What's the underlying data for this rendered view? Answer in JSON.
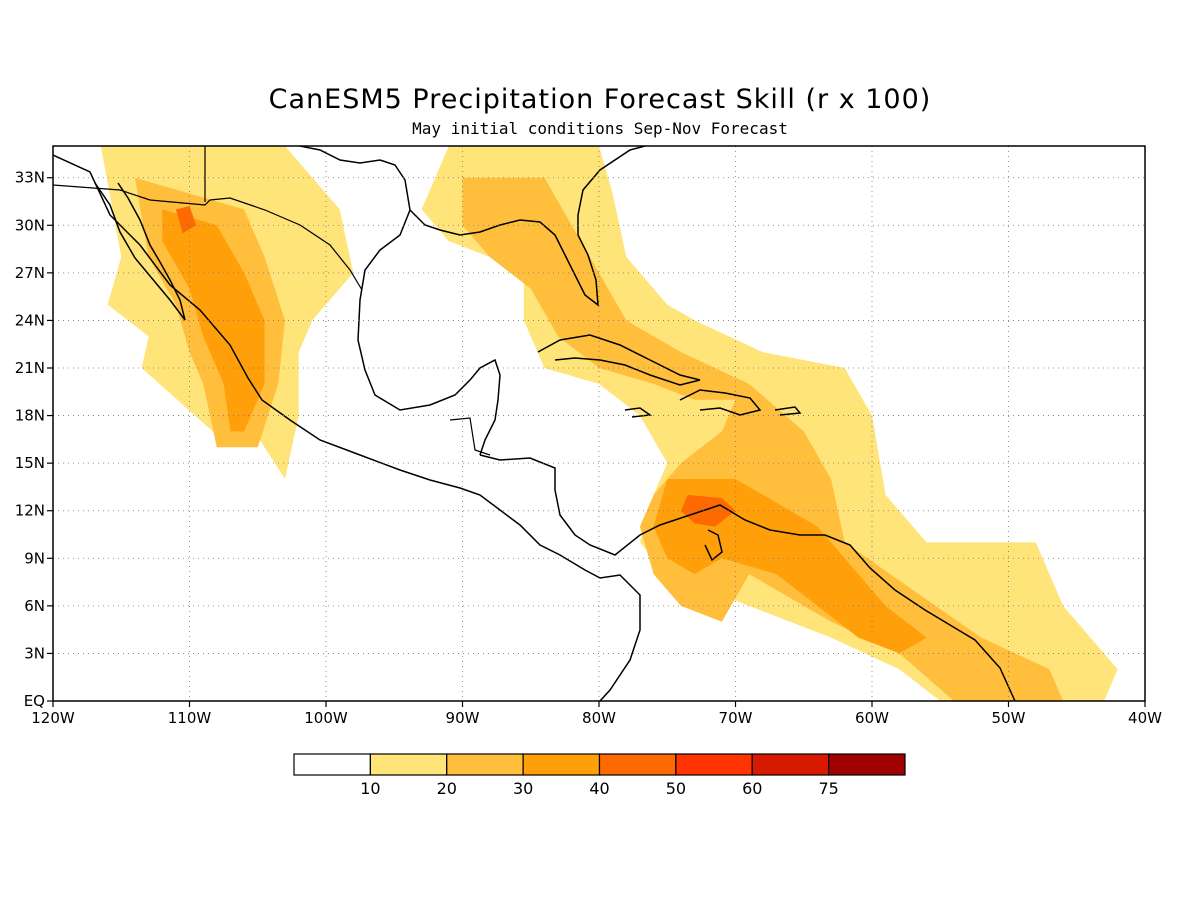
{
  "title": "CanESM5 Precipitation Forecast Skill (r x 100)",
  "subtitle": "May initial conditions  Sep-Nov Forecast",
  "map": {
    "lon_range": [
      -120,
      -40
    ],
    "lat_range": [
      0,
      35
    ],
    "lon_ticks": [
      {
        "value": -120,
        "label": "120W"
      },
      {
        "value": -110,
        "label": "110W"
      },
      {
        "value": -100,
        "label": "100W"
      },
      {
        "value": -90,
        "label": "90W"
      },
      {
        "value": -80,
        "label": "80W"
      },
      {
        "value": -70,
        "label": "70W"
      },
      {
        "value": -60,
        "label": "60W"
      },
      {
        "value": -50,
        "label": "50W"
      },
      {
        "value": -40,
        "label": "40W"
      }
    ],
    "lat_ticks": [
      {
        "value": 0,
        "label": "EQ"
      },
      {
        "value": 3,
        "label": "3N"
      },
      {
        "value": 6,
        "label": "6N"
      },
      {
        "value": 9,
        "label": "9N"
      },
      {
        "value": 12,
        "label": "12N"
      },
      {
        "value": 15,
        "label": "15N"
      },
      {
        "value": 18,
        "label": "18N"
      },
      {
        "value": 21,
        "label": "21N"
      },
      {
        "value": 24,
        "label": "24N"
      },
      {
        "value": 27,
        "label": "27N"
      },
      {
        "value": 30,
        "label": "30N"
      },
      {
        "value": 33,
        "label": "33N"
      }
    ],
    "grid": "dotted"
  },
  "colorbar": {
    "colors": [
      "#ffffff",
      "#ffe47a",
      "#ffbe3c",
      "#ffa00a",
      "#ff6a00",
      "#ff3400",
      "#d81a00",
      "#a00000"
    ],
    "labels": [
      "10",
      "20",
      "30",
      "40",
      "50",
      "60",
      "75"
    ]
  },
  "skill_regions": [
    {
      "level": 1,
      "points": [
        [
          -116.5,
          35
        ],
        [
          -103,
          35
        ],
        [
          -99,
          31
        ],
        [
          -98,
          27
        ],
        [
          -101,
          24
        ],
        [
          -102,
          22
        ],
        [
          -102,
          18
        ],
        [
          -103,
          14
        ],
        [
          -106,
          18
        ],
        [
          -107,
          16
        ],
        [
          -113.5,
          21
        ],
        [
          -113,
          23
        ],
        [
          -116,
          25
        ],
        [
          -115,
          28
        ]
      ]
    },
    {
      "level": 2,
      "points": [
        [
          -114,
          33
        ],
        [
          -106,
          31
        ],
        [
          -104.5,
          28
        ],
        [
          -103,
          24
        ],
        [
          -103.5,
          20
        ],
        [
          -105,
          16
        ],
        [
          -108,
          16
        ],
        [
          -109,
          20
        ],
        [
          -110,
          22
        ],
        [
          -111,
          25
        ],
        [
          -113,
          28
        ]
      ]
    },
    {
      "level": 3,
      "points": [
        [
          -112,
          31
        ],
        [
          -108,
          30
        ],
        [
          -106,
          27
        ],
        [
          -104.5,
          24
        ],
        [
          -104.5,
          20
        ],
        [
          -106,
          17
        ],
        [
          -107,
          17
        ],
        [
          -107.5,
          20
        ],
        [
          -109,
          23
        ],
        [
          -110,
          26
        ],
        [
          -112,
          29
        ]
      ]
    },
    {
      "level": 4,
      "points": [
        [
          -111,
          31
        ],
        [
          -110,
          31.2
        ],
        [
          -109.5,
          30
        ],
        [
          -110.5,
          29.5
        ]
      ]
    },
    {
      "level": 1,
      "points": [
        [
          -91,
          35
        ],
        [
          -80,
          35
        ],
        [
          -79,
          32
        ],
        [
          -78,
          28
        ],
        [
          -75,
          25
        ],
        [
          -73,
          24
        ],
        [
          -68,
          22
        ],
        [
          -62,
          21
        ],
        [
          -60,
          18
        ],
        [
          -59,
          13
        ],
        [
          -56,
          10
        ],
        [
          -48,
          10
        ],
        [
          -46,
          6
        ],
        [
          -42,
          2
        ],
        [
          -43,
          0
        ],
        [
          -55,
          0
        ],
        [
          -58,
          2
        ],
        [
          -63,
          4
        ],
        [
          -69,
          6
        ],
        [
          -72,
          7
        ],
        [
          -75,
          8
        ],
        [
          -77,
          10
        ],
        [
          -76,
          13
        ],
        [
          -75,
          15
        ],
        [
          -77,
          18
        ],
        [
          -80,
          20
        ],
        [
          -84,
          21
        ],
        [
          -85.5,
          24
        ],
        [
          -85.5,
          28
        ],
        [
          -88,
          28
        ],
        [
          -91,
          29
        ],
        [
          -93,
          31
        ]
      ]
    },
    {
      "level": 2,
      "points": [
        [
          -90,
          33
        ],
        [
          -84,
          33
        ],
        [
          -82,
          30
        ],
        [
          -80,
          27
        ],
        [
          -78,
          24
        ],
        [
          -74,
          22
        ],
        [
          -69,
          20
        ],
        [
          -65,
          17
        ],
        [
          -63,
          14
        ],
        [
          -62,
          10
        ],
        [
          -57,
          7
        ],
        [
          -52,
          4
        ],
        [
          -47,
          2
        ],
        [
          -46,
          0
        ],
        [
          -54,
          0
        ],
        [
          -58,
          3
        ],
        [
          -63,
          5
        ],
        [
          -69,
          8
        ],
        [
          -73,
          7
        ],
        [
          -75,
          10
        ],
        [
          -74,
          13
        ],
        [
          -71,
          13
        ],
        [
          -66,
          12
        ],
        [
          -63,
          12
        ],
        [
          -63,
          9
        ],
        [
          -66,
          9
        ],
        [
          -69,
          11
        ],
        [
          -72,
          11
        ],
        [
          -72,
          9
        ],
        [
          -69,
          8
        ],
        [
          -71,
          5
        ],
        [
          -74,
          6
        ],
        [
          -76,
          8
        ],
        [
          -77,
          11
        ],
        [
          -76,
          13
        ],
        [
          -74,
          15
        ],
        [
          -71,
          17
        ],
        [
          -70,
          19
        ],
        [
          -73,
          19
        ],
        [
          -76,
          20
        ],
        [
          -80,
          21
        ],
        [
          -83,
          23
        ],
        [
          -85,
          26
        ],
        [
          -88,
          28
        ],
        [
          -90,
          30
        ]
      ]
    },
    {
      "level": 3,
      "points": [
        [
          -75,
          14
        ],
        [
          -70,
          14
        ],
        [
          -66,
          12
        ],
        [
          -64,
          11
        ],
        [
          -62,
          9
        ],
        [
          -59,
          6
        ],
        [
          -56,
          4
        ],
        [
          -58,
          3
        ],
        [
          -61,
          4
        ],
        [
          -64,
          6
        ],
        [
          -67,
          8
        ],
        [
          -71,
          9
        ],
        [
          -73,
          8
        ],
        [
          -75,
          9
        ],
        [
          -76,
          11
        ]
      ]
    },
    {
      "level": 4,
      "points": [
        [
          -73.5,
          13
        ],
        [
          -71,
          12.8
        ],
        [
          -70,
          12
        ],
        [
          -71.5,
          11
        ],
        [
          -73,
          11.2
        ],
        [
          -74,
          12
        ]
      ]
    }
  ],
  "legend_aria": "colorbar legend"
}
